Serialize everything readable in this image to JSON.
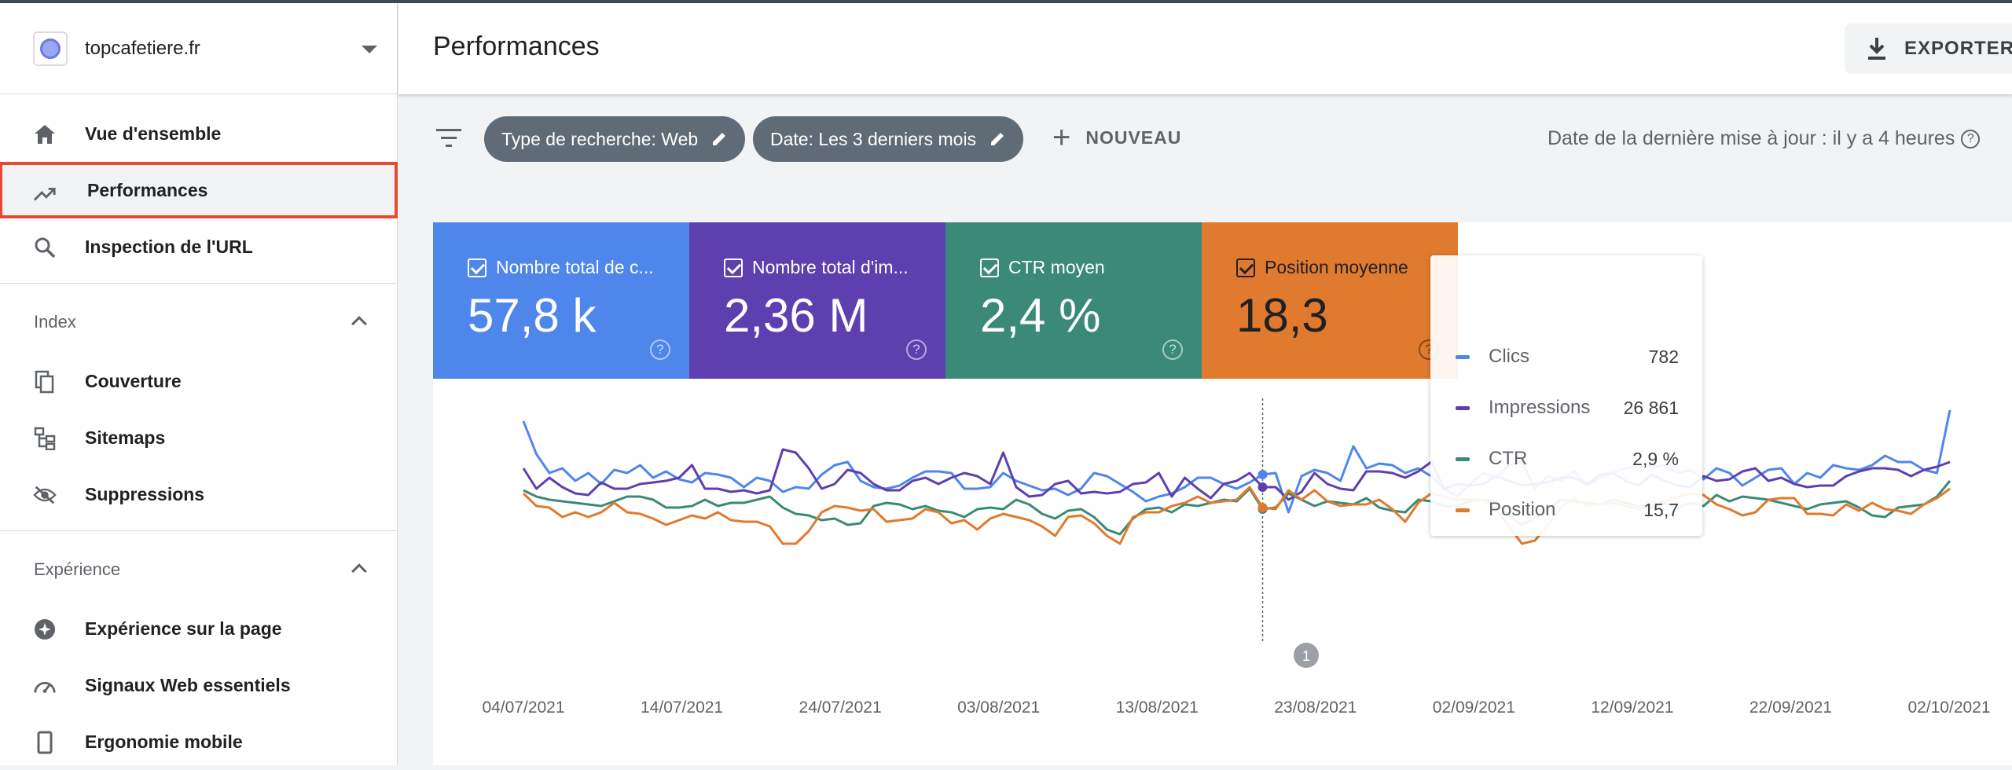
{
  "property": {
    "name": "topcafetiere.fr"
  },
  "nav": {
    "overview": "Vue d'ensemble",
    "performance": "Performances",
    "url_inspection": "Inspection de l'URL"
  },
  "index_section": {
    "title": "Index",
    "items": [
      "Couverture",
      "Sitemaps",
      "Suppressions"
    ]
  },
  "experience_section": {
    "title": "Expérience",
    "items": [
      "Expérience sur la page",
      "Signaux Web essentiels",
      "Ergonomie mobile"
    ]
  },
  "header": {
    "title": "Performances",
    "export_label": "EXPORTER"
  },
  "filters": {
    "chips": [
      "Type de recherche: Web",
      "Date: Les 3 derniers mois"
    ],
    "new_label": "NOUVEAU",
    "updated": "Date de la dernière mise à jour : il y a 4 heures"
  },
  "metrics": [
    {
      "label": "Nombre total de c...",
      "value": "57,8 k",
      "color": "#4f86ec"
    },
    {
      "label": "Nombre total d'im...",
      "value": "2,36 M",
      "color": "#5e3fb0"
    },
    {
      "label": "CTR moyen",
      "value": "2,4 %",
      "color": "#3a8a77"
    },
    {
      "label": "Position moyenne",
      "value": "18,3",
      "color": "#e07a2e"
    }
  ],
  "tooltip": [
    {
      "name": "Clics",
      "value": "782",
      "color": "#4f86ec"
    },
    {
      "name": "Impressions",
      "value": "26 861",
      "color": "#5e3fb0"
    },
    {
      "name": "CTR",
      "value": "2,9 %",
      "color": "#3a8a77"
    },
    {
      "name": "Position",
      "value": "15,7",
      "color": "#e07a2e"
    }
  ],
  "annotation_label": "1",
  "chart_data": {
    "type": "line",
    "x_labels": [
      "04/07/2021",
      "14/07/2021",
      "24/07/2021",
      "03/08/2021",
      "13/08/2021",
      "23/08/2021",
      "02/09/2021",
      "12/09/2021",
      "22/09/2021",
      "02/10/2021"
    ],
    "series": [
      {
        "name": "Clics",
        "color": "#4f86ec",
        "values": [
          88,
          67,
          55,
          58,
          50,
          55,
          48,
          57,
          55,
          60,
          52,
          56,
          51,
          49,
          55,
          54,
          52,
          46,
          52,
          50,
          43,
          46,
          45,
          54,
          60,
          62,
          50,
          46,
          45,
          47,
          52,
          56,
          56,
          55,
          45,
          45,
          46,
          55,
          50,
          47,
          44,
          45,
          41,
          45,
          55,
          53,
          48,
          43,
          37,
          40,
          42,
          46,
          52,
          52,
          48,
          45,
          49,
          54,
          55,
          30,
          53,
          57,
          55,
          50,
          72,
          58,
          61,
          60,
          55,
          58,
          53,
          45,
          40,
          48,
          55,
          52,
          60,
          62,
          45,
          53,
          50,
          56,
          47,
          52,
          55,
          58,
          59,
          59,
          60,
          55,
          57,
          51,
          58,
          55,
          47,
          52,
          57,
          58,
          48,
          55,
          52,
          60,
          58,
          57,
          60,
          66,
          62,
          62,
          57,
          55,
          95
        ]
      },
      {
        "name": "Impressions",
        "color": "#5e3fb0",
        "values": [
          58,
          45,
          52,
          46,
          42,
          41,
          49,
          45,
          45,
          48,
          49,
          50,
          52,
          60,
          45,
          45,
          43,
          44,
          42,
          44,
          70,
          68,
          58,
          45,
          48,
          57,
          55,
          48,
          44,
          44,
          50,
          52,
          48,
          52,
          55,
          53,
          48,
          68,
          46,
          40,
          41,
          48,
          50,
          42,
          43,
          42,
          43,
          48,
          49,
          55,
          40,
          52,
          45,
          39,
          48,
          50,
          55,
          46,
          46,
          38,
          43,
          55,
          48,
          45,
          44,
          56,
          56,
          55,
          52,
          56,
          62,
          45,
          48,
          47,
          48,
          53,
          50,
          47,
          48,
          49,
          52,
          52,
          48,
          54,
          55,
          50,
          47,
          54,
          50,
          47,
          46,
          53,
          50,
          51,
          56,
          58,
          50,
          52,
          48,
          46,
          47,
          47,
          53,
          56,
          58,
          58,
          57,
          53,
          57,
          59,
          62
        ]
      },
      {
        "name": "CTR",
        "color": "#3a8a77",
        "values": [
          44,
          40,
          38,
          37,
          36,
          35,
          34,
          37,
          40,
          40,
          38,
          33,
          33,
          34,
          38,
          34,
          36,
          36,
          38,
          40,
          33,
          29,
          28,
          25,
          26,
          22,
          23,
          34,
          36,
          35,
          32,
          34,
          31,
          30,
          27,
          32,
          33,
          32,
          38,
          35,
          29,
          26,
          31,
          32,
          27,
          19,
          16,
          26,
          32,
          33,
          30,
          35,
          34,
          36,
          38,
          37,
          45,
          32,
          33,
          42,
          38,
          34,
          37,
          36,
          35,
          39,
          33,
          31,
          30,
          38,
          37,
          34,
          34,
          37,
          38,
          37,
          28,
          22,
          26,
          32,
          38,
          37,
          36,
          35,
          38,
          36,
          34,
          33,
          36,
          33,
          36,
          34,
          41,
          37,
          40,
          39,
          38,
          36,
          34,
          32,
          35,
          36,
          37,
          33,
          28,
          27,
          33,
          34,
          35,
          40,
          50
        ]
      },
      {
        "name": "Position",
        "color": "#e07a2e",
        "values": [
          42,
          34,
          33,
          27,
          30,
          27,
          30,
          36,
          30,
          29,
          26,
          22,
          25,
          28,
          26,
          30,
          25,
          24,
          24,
          21,
          10,
          10,
          18,
          30,
          34,
          33,
          31,
          32,
          24,
          25,
          26,
          32,
          30,
          23,
          25,
          19,
          26,
          29,
          27,
          25,
          21,
          15,
          27,
          28,
          23,
          15,
          10,
          27,
          30,
          30,
          34,
          36,
          40,
          36,
          37,
          38,
          46,
          33,
          32,
          44,
          38,
          44,
          37,
          34,
          35,
          35,
          38,
          32,
          24,
          36,
          42,
          40,
          38,
          38,
          38,
          32,
          21,
          10,
          12,
          22,
          33,
          39,
          34,
          35,
          36,
          34,
          32,
          36,
          37,
          40,
          42,
          41,
          35,
          32,
          28,
          30,
          38,
          39,
          39,
          29,
          29,
          28,
          35,
          31,
          36,
          32,
          31,
          29,
          35,
          39,
          45
        ]
      }
    ]
  }
}
